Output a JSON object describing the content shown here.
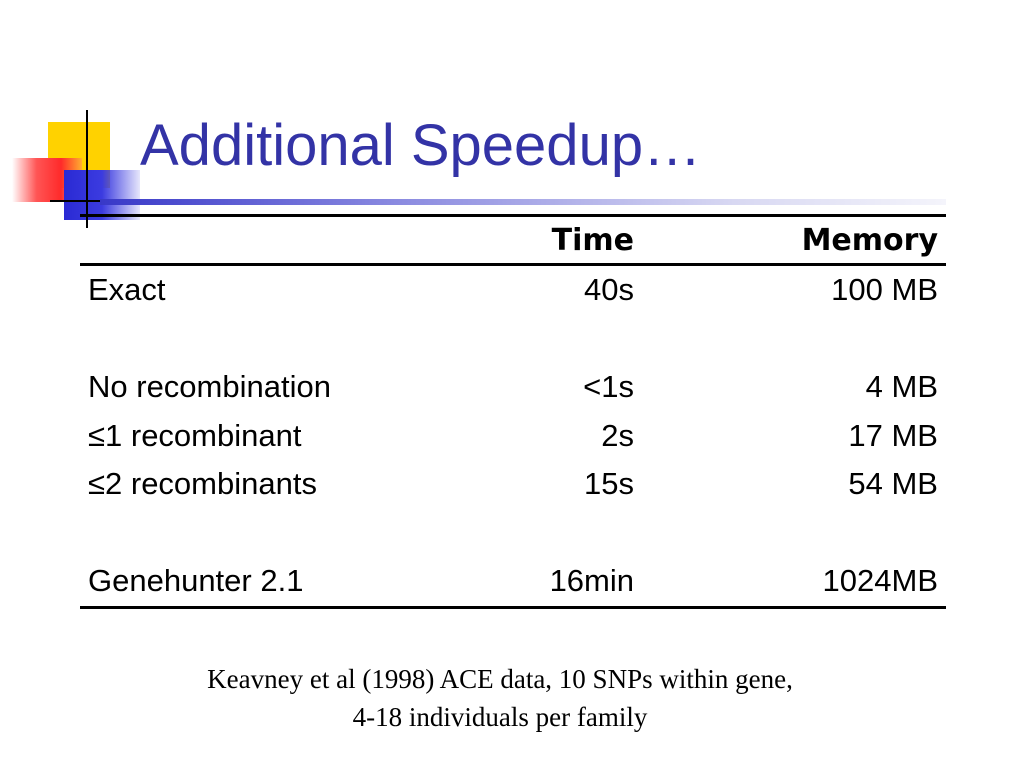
{
  "slide": {
    "title": "Additional Speedup…"
  },
  "table": {
    "columns": [
      "",
      "Time",
      "Memory"
    ],
    "rows": [
      {
        "label": "Exact",
        "time": "40s",
        "memory": "100 MB"
      },
      {
        "label": "",
        "time": "",
        "memory": ""
      },
      {
        "label": "No recombination",
        "time": "<1s",
        "memory": "4 MB"
      },
      {
        "label": "≤1 recombinant",
        "time": "2s",
        "memory": "17 MB"
      },
      {
        "label": "≤2 recombinants",
        "time": "15s",
        "memory": "54 MB"
      },
      {
        "label": "",
        "time": "",
        "memory": ""
      },
      {
        "label": "Genehunter 2.1",
        "time": "16min",
        "memory": "1024MB"
      }
    ]
  },
  "caption": {
    "line1": "Keavney et al (1998) ACE data, 10 SNPs within gene,",
    "line2": "4-18 individuals per family"
  },
  "colors": {
    "title": "#3333a6",
    "accent_yellow": "#ffd200",
    "accent_red": "#ff2a2a",
    "accent_blue": "#2a2ad4"
  }
}
